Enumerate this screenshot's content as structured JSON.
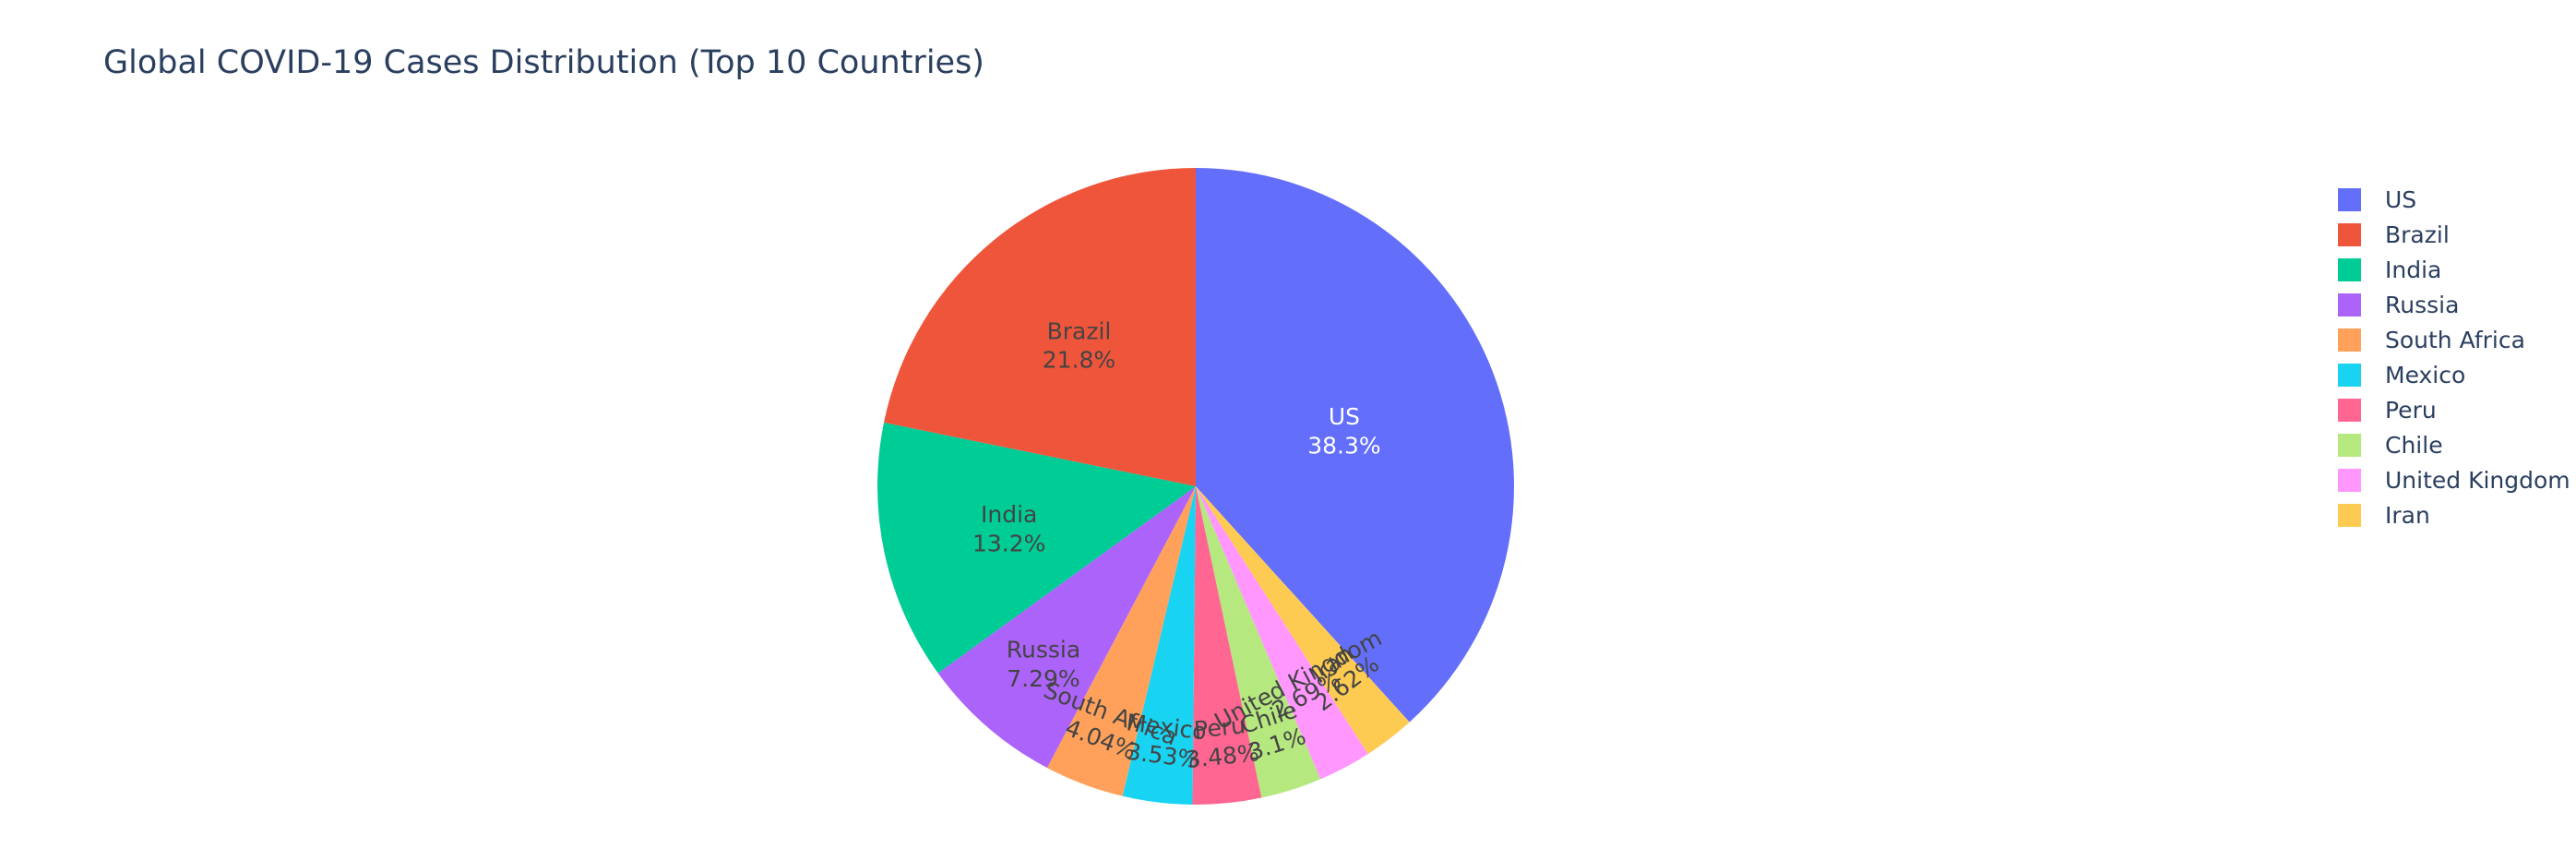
{
  "chart_data": {
    "type": "pie",
    "title": "Global COVID-19 Cases Distribution (Top 10 Countries)",
    "sort_direction": "clockwise",
    "legend_position": "right",
    "slices": [
      {
        "label": "US",
        "percent_text": "38.3%",
        "value": 38.3,
        "color": "#636efa",
        "text_color": "#ffffff"
      },
      {
        "label": "Iran",
        "percent_text": "2.62%",
        "value": 2.62,
        "color": "#fecb52",
        "text_color": "#444444"
      },
      {
        "label": "United Kingdom",
        "percent_text": "2.69%",
        "value": 2.69,
        "color": "#ff97ff",
        "text_color": "#444444"
      },
      {
        "label": "Chile",
        "percent_text": "3.1%",
        "value": 3.1,
        "color": "#b6e880",
        "text_color": "#444444"
      },
      {
        "label": "Peru",
        "percent_text": "3.48%",
        "value": 3.48,
        "color": "#ff6692",
        "text_color": "#444444"
      },
      {
        "label": "Mexico",
        "percent_text": "3.53%",
        "value": 3.53,
        "color": "#19d3f3",
        "text_color": "#444444"
      },
      {
        "label": "South Africa",
        "percent_text": "4.04%",
        "value": 4.04,
        "color": "#ffa15a",
        "text_color": "#444444"
      },
      {
        "label": "Russia",
        "percent_text": "7.29%",
        "value": 7.29,
        "color": "#ab63fa",
        "text_color": "#444444"
      },
      {
        "label": "India",
        "percent_text": "13.2%",
        "value": 13.2,
        "color": "#00cc96",
        "text_color": "#444444"
      },
      {
        "label": "Brazil",
        "percent_text": "21.8%",
        "value": 21.8,
        "color": "#ef553b",
        "text_color": "#444444"
      }
    ],
    "legend": [
      {
        "label": "US",
        "color": "#636efa"
      },
      {
        "label": "Brazil",
        "color": "#ef553b"
      },
      {
        "label": "India",
        "color": "#00cc96"
      },
      {
        "label": "Russia",
        "color": "#ab63fa"
      },
      {
        "label": "South Africa",
        "color": "#ffa15a"
      },
      {
        "label": "Mexico",
        "color": "#19d3f3"
      },
      {
        "label": "Peru",
        "color": "#ff6692"
      },
      {
        "label": "Chile",
        "color": "#b6e880"
      },
      {
        "label": "United Kingdom",
        "color": "#ff97ff"
      },
      {
        "label": "Iran",
        "color": "#fecb52"
      }
    ]
  }
}
